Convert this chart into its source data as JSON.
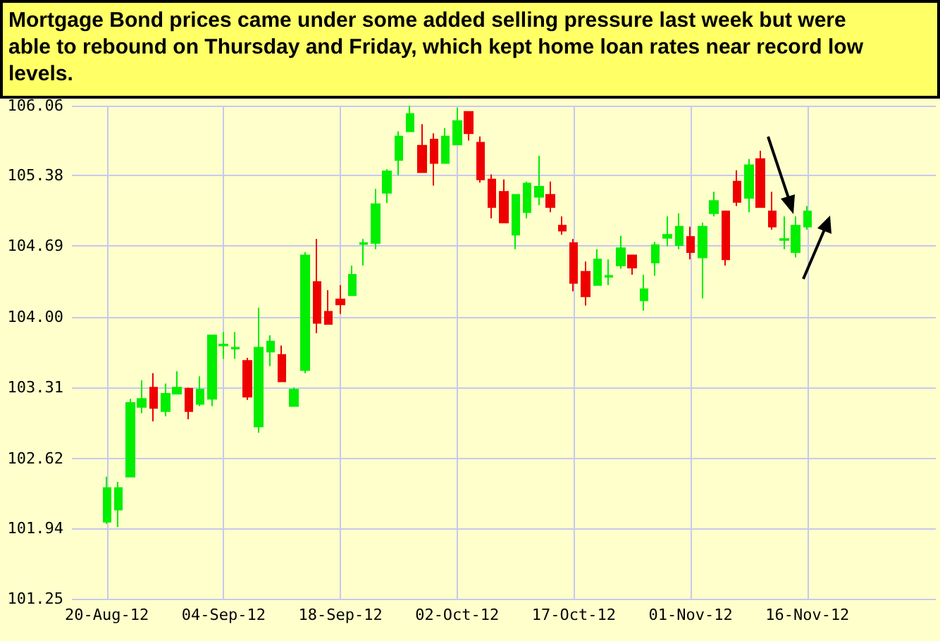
{
  "chart_data": {
    "type": "candlestick",
    "title": "Mortgage Bond prices came under some added selling pressure last week but were able to rebound on Thursday and Friday, which kept home loan rates near record low levels.",
    "categories": [
      null,
      null,
      null,
      "20-Aug-12",
      null,
      null,
      null,
      null,
      null,
      null,
      null,
      null,
      null,
      "04-Sep-12",
      null,
      null,
      null,
      null,
      null,
      null,
      null,
      null,
      null,
      "18-Sep-12",
      null,
      null,
      null,
      null,
      null,
      null,
      null,
      null,
      null,
      "02-Oct-12",
      null,
      null,
      null,
      null,
      null,
      null,
      null,
      null,
      null,
      "17-Oct-12",
      null,
      null,
      null,
      null,
      null,
      null,
      null,
      null,
      null,
      "01-Nov-12",
      null,
      null,
      null,
      null,
      null,
      null,
      null,
      null,
      null,
      "16-Nov-12",
      null,
      null,
      null,
      null,
      null,
      null,
      null,
      null,
      null,
      null,
      null
    ],
    "ohlc": [
      null,
      null,
      null,
      [
        102.0,
        102.44,
        101.98,
        102.33
      ],
      [
        102.12,
        102.39,
        101.95,
        102.33
      ],
      [
        102.44,
        103.2,
        102.44,
        103.16
      ],
      [
        103.12,
        103.38,
        103.06,
        103.2
      ],
      [
        103.31,
        103.45,
        102.98,
        103.11
      ],
      [
        103.08,
        103.35,
        103.03,
        103.25
      ],
      [
        103.25,
        103.47,
        103.25,
        103.31
      ],
      [
        103.3,
        103.31,
        103.0,
        103.08
      ],
      [
        103.15,
        103.42,
        103.13,
        103.29
      ],
      [
        103.2,
        103.82,
        103.13,
        103.82
      ],
      [
        103.72,
        103.85,
        103.59,
        103.73
      ],
      [
        103.69,
        103.85,
        103.59,
        103.7
      ],
      [
        103.57,
        103.6,
        103.19,
        103.22
      ],
      [
        102.93,
        104.09,
        102.87,
        103.7
      ],
      [
        103.66,
        103.82,
        103.52,
        103.76
      ],
      [
        103.63,
        103.72,
        103.37,
        103.37
      ],
      [
        103.13,
        103.31,
        103.13,
        103.29
      ],
      [
        103.48,
        104.63,
        103.45,
        104.6
      ],
      [
        104.34,
        104.76,
        103.84,
        103.94
      ],
      [
        104.05,
        104.26,
        103.93,
        103.93
      ],
      [
        104.17,
        104.31,
        104.03,
        104.12
      ],
      [
        104.21,
        104.5,
        104.21,
        104.41
      ],
      [
        104.71,
        104.76,
        104.5,
        104.72
      ],
      [
        104.72,
        105.25,
        104.66,
        105.1
      ],
      [
        105.21,
        105.44,
        105.11,
        105.42
      ],
      [
        105.53,
        105.81,
        105.38,
        105.76
      ],
      [
        105.81,
        106.06,
        105.81,
        105.98
      ],
      [
        105.67,
        105.88,
        105.41,
        105.41
      ],
      [
        105.73,
        105.79,
        105.28,
        105.5
      ],
      [
        105.5,
        105.84,
        105.5,
        105.76
      ],
      [
        105.68,
        106.04,
        105.68,
        105.91
      ],
      [
        106.0,
        106.0,
        105.72,
        105.79
      ],
      [
        105.7,
        105.76,
        105.31,
        105.34
      ],
      [
        105.34,
        105.39,
        104.96,
        105.07
      ],
      [
        105.22,
        105.34,
        104.92,
        104.92
      ],
      [
        104.8,
        105.19,
        104.66,
        105.19
      ],
      [
        105.02,
        105.32,
        104.96,
        105.3
      ],
      [
        105.17,
        105.57,
        105.09,
        105.27
      ],
      [
        105.19,
        105.32,
        105.02,
        105.07
      ],
      [
        104.89,
        104.98,
        104.8,
        104.84
      ],
      [
        104.72,
        104.76,
        104.25,
        104.33
      ],
      [
        104.44,
        104.54,
        104.11,
        104.2
      ],
      [
        104.31,
        104.66,
        104.31,
        104.56
      ],
      [
        104.39,
        104.56,
        104.31,
        104.4
      ],
      [
        104.5,
        104.79,
        104.47,
        104.67
      ],
      [
        104.6,
        104.6,
        104.41,
        104.48
      ],
      [
        104.16,
        104.41,
        104.06,
        104.27
      ],
      [
        104.53,
        104.73,
        104.4,
        104.7
      ],
      [
        104.77,
        104.98,
        104.69,
        104.8
      ],
      [
        104.7,
        105.01,
        104.66,
        104.88
      ],
      [
        104.78,
        104.88,
        104.56,
        104.63
      ],
      [
        104.58,
        104.92,
        104.18,
        104.88
      ],
      [
        105.01,
        105.22,
        104.98,
        105.13
      ],
      [
        105.03,
        105.03,
        104.5,
        104.56
      ],
      [
        105.32,
        105.43,
        105.08,
        105.12
      ],
      [
        105.16,
        105.54,
        105.02,
        105.48
      ],
      [
        105.54,
        105.62,
        105.07,
        105.07
      ],
      [
        105.03,
        105.22,
        104.85,
        104.88
      ],
      [
        104.75,
        104.98,
        104.66,
        104.76
      ],
      [
        104.63,
        104.98,
        104.58,
        104.89
      ],
      [
        104.88,
        105.08,
        104.85,
        105.03
      ],
      null,
      null,
      null,
      null,
      null,
      null,
      null,
      null,
      null,
      null,
      null
    ],
    "colors": [
      null,
      null,
      null,
      "#00ee00",
      "#00ee00",
      "#00ee00",
      "#00ee00",
      "#ee0000",
      "#00ee00",
      "#00ee00",
      "#ee0000",
      "#00ee00",
      "#00ee00",
      "#00ee00",
      "#00ee00",
      "#ee0000",
      "#00ee00",
      "#00ee00",
      "#ee0000",
      "#00ee00",
      "#00ee00",
      "#ee0000",
      "#ee0000",
      "#ee0000",
      "#00ee00",
      "#00ee00",
      "#00ee00",
      "#00ee00",
      "#00ee00",
      "#00ee00",
      "#ee0000",
      "#ee0000",
      "#00ee00",
      "#00ee00",
      "#ee0000",
      "#ee0000",
      "#ee0000",
      "#ee0000",
      "#00ee00",
      "#00ee00",
      "#00ee00",
      "#ee0000",
      "#ee0000",
      "#ee0000",
      "#ee0000",
      "#00ee00",
      "#00ee00",
      "#00ee00",
      "#ee0000",
      "#00ee00",
      "#00ee00",
      "#00ee00",
      "#00ee00",
      "#ee0000",
      "#00ee00",
      "#00ee00",
      "#ee0000",
      "#ee0000",
      "#00ee00",
      "#ee0000",
      "#ee0000",
      "#00ee00",
      "#00ee00",
      "#00ee00",
      null,
      null,
      null,
      null,
      null,
      null,
      null,
      null,
      null,
      null,
      null
    ],
    "ylim": [
      101.25,
      106.06
    ],
    "yticks": [
      101.25,
      101.94,
      102.62,
      103.31,
      {
        "value": 104,
        "label": "104.00"
      },
      104.69,
      105.38,
      106.06
    ],
    "grid": true
  }
}
